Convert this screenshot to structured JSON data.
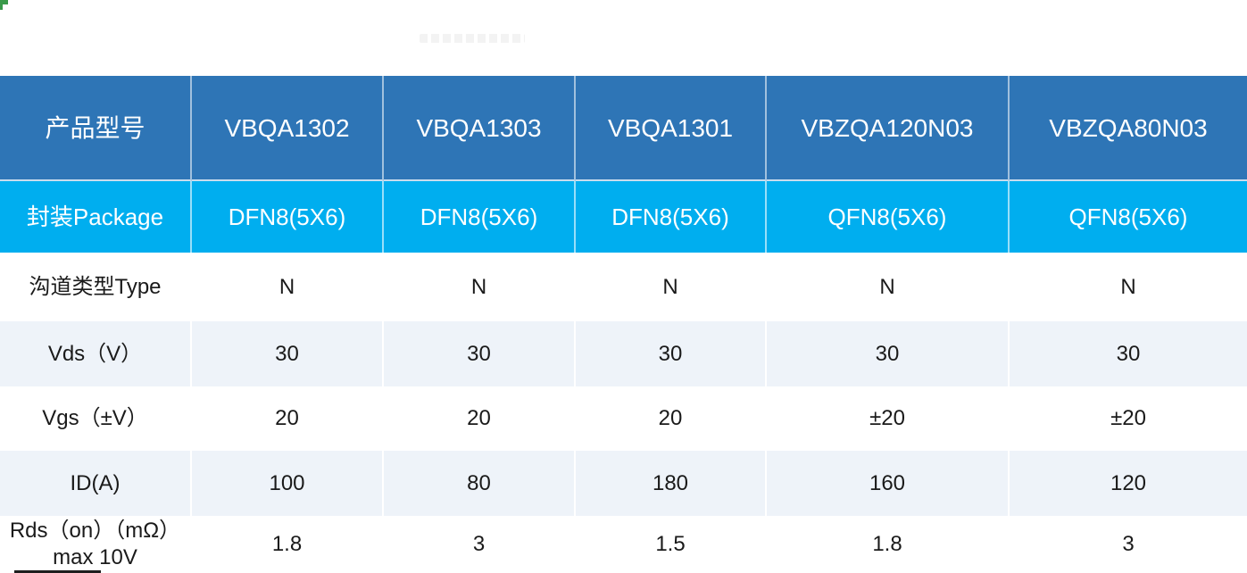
{
  "page": {
    "background": "#ffffff"
  },
  "decorations": {
    "corner_mark_color": "#3a9a4a",
    "watermark_present": true,
    "clipped_text_strip_present": true
  },
  "table": {
    "colors": {
      "header_bg": "#2e75b6",
      "package_row_bg": "#00aeef",
      "light_row_bg": "#eef3f9",
      "white_row_bg": "#ffffff",
      "header_text": "#ffffff",
      "body_text": "#1a1a1a",
      "divider": "#b8d2ea"
    },
    "header": {
      "label": "产品型号",
      "products": [
        "VBQA1302",
        "VBQA1303",
        "VBQA1301",
        "VBZQA120N03",
        "VBZQA80N03"
      ]
    },
    "rows": [
      {
        "label": "封装Package",
        "style": "cyan",
        "row_class": "",
        "values": [
          "DFN8(5X6)",
          "DFN8(5X6)",
          "DFN8(5X6)",
          "QFN8(5X6)",
          "QFN8(5X6)"
        ]
      },
      {
        "label": "沟道类型Type",
        "style": "white",
        "row_class": "r-type",
        "values": [
          "N",
          "N",
          "N",
          "N",
          "N"
        ]
      },
      {
        "label": "Vds（V）",
        "style": "light",
        "row_class": "r-vds",
        "values": [
          "30",
          "30",
          "30",
          "30",
          "30"
        ]
      },
      {
        "label": "Vgs（±V）",
        "style": "white",
        "row_class": "r-vgs",
        "values": [
          "20",
          "20",
          "20",
          "±20",
          "±20"
        ]
      },
      {
        "label": "ID(A)",
        "style": "light",
        "row_class": "r-id",
        "values": [
          "100",
          "80",
          "180",
          "160",
          "120"
        ]
      },
      {
        "label": "Rds（on）（mΩ）max 10V",
        "style": "white",
        "row_class": "r-rds",
        "values": [
          "1.8",
          "3",
          "1.5",
          "1.8",
          "3"
        ]
      }
    ]
  }
}
